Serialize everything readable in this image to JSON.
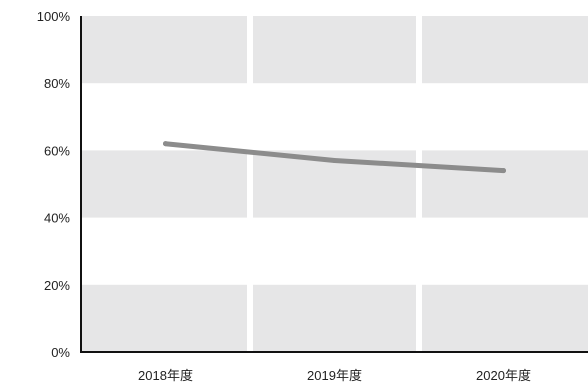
{
  "chart_data": {
    "type": "line",
    "categories": [
      "2018年度",
      "2019年度",
      "2020年度"
    ],
    "series": [
      {
        "values": [
          62,
          57,
          54
        ]
      }
    ],
    "y_ticks": [
      "0%",
      "20%",
      "40%",
      "60%",
      "80%",
      "100%"
    ],
    "ylim": [
      0,
      100
    ],
    "grid": true,
    "colors": {
      "line": "#8c8c8c",
      "band": "#e6e6e7",
      "axis": "#111111"
    }
  }
}
